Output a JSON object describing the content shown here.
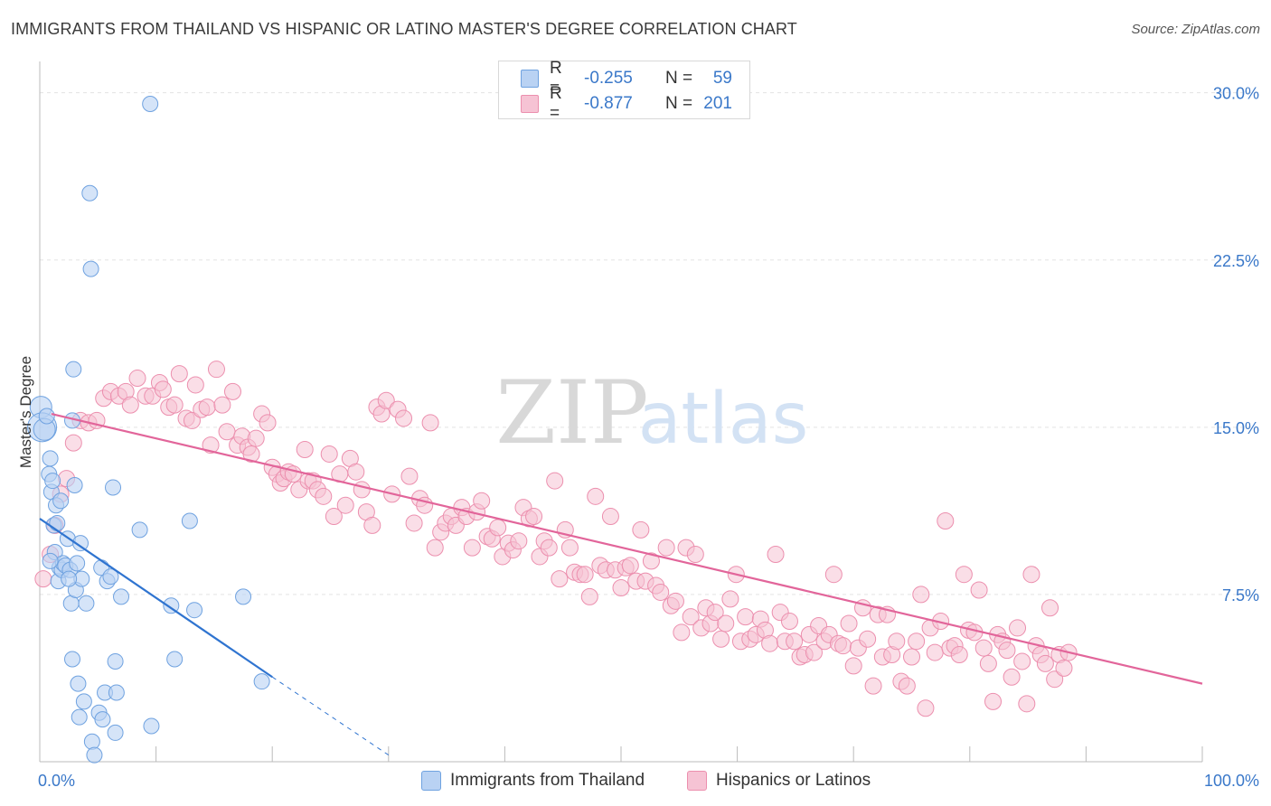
{
  "title": "IMMIGRANTS FROM THAILAND VS HISPANIC OR LATINO MASTER'S DEGREE CORRELATION CHART",
  "source": "Source: ZipAtlas.com",
  "watermark": {
    "zip": "ZIP",
    "atlas": "atlas"
  },
  "colors": {
    "blue": "#6fa2e0",
    "blue_fill": "#b9d2f3",
    "blue_line": "#2f74d0",
    "pink": "#ec8fae",
    "pink_fill": "#f6c3d4",
    "pink_line": "#e2659a",
    "tick_text": "#3a78c9"
  },
  "legend": {
    "rows": [
      {
        "r_label": "R =",
        "r_value": "-0.255",
        "n_label": "N =",
        "n_value": "59"
      },
      {
        "r_label": "R =",
        "r_value": "-0.877",
        "n_label": "N =",
        "n_value": "201"
      }
    ]
  },
  "bottom_legend": {
    "blue": "Immigrants from Thailand",
    "pink": "Hispanics or Latinos"
  },
  "chart_data": {
    "type": "scatter",
    "title": "IMMIGRANTS FROM THAILAND VS HISPANIC OR LATINO MASTER'S DEGREE CORRELATION CHART",
    "xlabel": "",
    "ylabel": "Master's Degree",
    "xlim": [
      0,
      100
    ],
    "ylim": [
      0,
      31
    ],
    "x_tick_labels": [
      "0.0%",
      "100.0%"
    ],
    "y_ticks": [
      7.5,
      15.0,
      22.5,
      30.0
    ],
    "y_tick_labels": [
      "7.5%",
      "15.0%",
      "22.5%",
      "30.0%"
    ],
    "series": [
      {
        "name": "Immigrants from Thailand",
        "color": "blue",
        "r": -0.255,
        "n": 59,
        "trend": {
          "x0": 0,
          "y0": 10.9,
          "x1": 20,
          "y1": 3.8,
          "dash_to_x": 30,
          "dash_to_y": 0.3
        },
        "points": [
          [
            0.1,
            15.9
          ],
          [
            0.2,
            15.0
          ],
          [
            0.4,
            14.9
          ],
          [
            0.6,
            15.5
          ],
          [
            0.8,
            12.9
          ],
          [
            0.9,
            13.6
          ],
          [
            1.0,
            12.1
          ],
          [
            1.1,
            12.6
          ],
          [
            1.3,
            9.4
          ],
          [
            1.2,
            10.6
          ],
          [
            1.4,
            11.5
          ],
          [
            1.6,
            8.1
          ],
          [
            1.7,
            8.7
          ],
          [
            1.8,
            11.7
          ],
          [
            1.9,
            8.6
          ],
          [
            2.0,
            8.9
          ],
          [
            2.2,
            8.8
          ],
          [
            2.4,
            10.0
          ],
          [
            2.6,
            8.6
          ],
          [
            2.7,
            7.1
          ],
          [
            2.8,
            4.6
          ],
          [
            2.8,
            15.3
          ],
          [
            2.9,
            17.6
          ],
          [
            3.1,
            7.7
          ],
          [
            3.2,
            8.9
          ],
          [
            3.3,
            3.5
          ],
          [
            3.4,
            2.0
          ],
          [
            3.5,
            9.8
          ],
          [
            3.6,
            8.2
          ],
          [
            3.8,
            2.7
          ],
          [
            4.0,
            7.1
          ],
          [
            4.3,
            25.5
          ],
          [
            4.4,
            22.1
          ],
          [
            4.5,
            0.9
          ],
          [
            4.7,
            0.3
          ],
          [
            5.1,
            2.2
          ],
          [
            5.3,
            8.7
          ],
          [
            5.4,
            1.9
          ],
          [
            5.6,
            3.1
          ],
          [
            5.8,
            8.1
          ],
          [
            6.1,
            8.3
          ],
          [
            6.3,
            12.3
          ],
          [
            6.5,
            4.5
          ],
          [
            6.5,
            1.3
          ],
          [
            6.6,
            3.1
          ],
          [
            7.0,
            7.4
          ],
          [
            8.6,
            10.4
          ],
          [
            9.5,
            29.5
          ],
          [
            9.6,
            1.6
          ],
          [
            11.3,
            7.0
          ],
          [
            11.6,
            4.6
          ],
          [
            12.9,
            10.8
          ],
          [
            13.3,
            6.8
          ],
          [
            17.5,
            7.4
          ],
          [
            19.1,
            3.6
          ],
          [
            2.5,
            8.2
          ],
          [
            1.5,
            10.7
          ],
          [
            3.0,
            12.4
          ],
          [
            0.9,
            9.0
          ]
        ]
      },
      {
        "name": "Hispanics or Latinos",
        "color": "pink",
        "r": -0.877,
        "n": 201,
        "trend": {
          "x0": 1,
          "y0": 15.6,
          "x1": 100,
          "y1": 3.5
        },
        "points": [
          [
            0.3,
            8.2
          ],
          [
            0.9,
            9.3
          ],
          [
            1.3,
            10.6
          ],
          [
            1.8,
            12.0
          ],
          [
            2.3,
            12.7
          ],
          [
            2.9,
            14.3
          ],
          [
            3.5,
            15.3
          ],
          [
            4.2,
            15.2
          ],
          [
            4.9,
            15.3
          ],
          [
            5.5,
            16.3
          ],
          [
            6.1,
            16.6
          ],
          [
            6.8,
            16.4
          ],
          [
            7.4,
            16.6
          ],
          [
            7.8,
            16.0
          ],
          [
            8.4,
            17.2
          ],
          [
            9.1,
            16.4
          ],
          [
            9.7,
            16.4
          ],
          [
            10.3,
            17.0
          ],
          [
            10.6,
            16.7
          ],
          [
            11.1,
            15.9
          ],
          [
            11.6,
            16.0
          ],
          [
            12.0,
            17.4
          ],
          [
            12.6,
            15.4
          ],
          [
            13.1,
            15.3
          ],
          [
            13.4,
            16.9
          ],
          [
            13.9,
            15.8
          ],
          [
            14.4,
            15.9
          ],
          [
            14.7,
            14.2
          ],
          [
            15.2,
            17.6
          ],
          [
            15.7,
            16.0
          ],
          [
            16.1,
            14.8
          ],
          [
            16.6,
            16.6
          ],
          [
            17.0,
            14.2
          ],
          [
            17.4,
            14.6
          ],
          [
            17.9,
            14.1
          ],
          [
            18.2,
            13.8
          ],
          [
            18.6,
            14.5
          ],
          [
            19.1,
            15.6
          ],
          [
            19.6,
            15.2
          ],
          [
            20.0,
            13.2
          ],
          [
            20.4,
            12.9
          ],
          [
            20.7,
            12.5
          ],
          [
            21.0,
            12.7
          ],
          [
            21.4,
            13.0
          ],
          [
            21.8,
            12.9
          ],
          [
            22.3,
            12.2
          ],
          [
            22.8,
            14.0
          ],
          [
            23.1,
            12.6
          ],
          [
            23.5,
            12.6
          ],
          [
            23.9,
            12.2
          ],
          [
            24.4,
            11.9
          ],
          [
            24.9,
            13.8
          ],
          [
            25.3,
            11.0
          ],
          [
            25.8,
            12.9
          ],
          [
            26.3,
            11.5
          ],
          [
            26.7,
            13.6
          ],
          [
            27.2,
            13.0
          ],
          [
            27.7,
            12.2
          ],
          [
            28.1,
            11.2
          ],
          [
            28.6,
            10.6
          ],
          [
            29.0,
            15.9
          ],
          [
            29.4,
            15.6
          ],
          [
            29.8,
            16.2
          ],
          [
            30.3,
            12.0
          ],
          [
            30.8,
            15.8
          ],
          [
            31.3,
            15.4
          ],
          [
            31.8,
            12.8
          ],
          [
            32.2,
            10.7
          ],
          [
            32.7,
            11.8
          ],
          [
            33.1,
            11.5
          ],
          [
            33.6,
            15.2
          ],
          [
            34.0,
            9.6
          ],
          [
            34.5,
            10.3
          ],
          [
            34.9,
            10.7
          ],
          [
            35.4,
            11.0
          ],
          [
            35.8,
            10.6
          ],
          [
            36.3,
            11.4
          ],
          [
            36.7,
            11.0
          ],
          [
            37.2,
            9.6
          ],
          [
            37.6,
            11.2
          ],
          [
            38.0,
            11.7
          ],
          [
            38.5,
            10.1
          ],
          [
            38.9,
            10.0
          ],
          [
            39.4,
            10.5
          ],
          [
            39.8,
            9.2
          ],
          [
            40.3,
            9.8
          ],
          [
            40.7,
            9.5
          ],
          [
            41.2,
            9.9
          ],
          [
            41.6,
            11.4
          ],
          [
            42.1,
            10.9
          ],
          [
            42.5,
            11.0
          ],
          [
            43.0,
            9.2
          ],
          [
            43.4,
            9.9
          ],
          [
            43.8,
            9.6
          ],
          [
            44.3,
            12.6
          ],
          [
            44.7,
            8.2
          ],
          [
            45.2,
            10.4
          ],
          [
            45.6,
            9.6
          ],
          [
            46.0,
            8.5
          ],
          [
            46.5,
            8.4
          ],
          [
            46.9,
            8.4
          ],
          [
            47.3,
            7.4
          ],
          [
            47.8,
            11.9
          ],
          [
            48.2,
            8.8
          ],
          [
            48.7,
            8.6
          ],
          [
            49.1,
            11.0
          ],
          [
            49.5,
            8.6
          ],
          [
            50.0,
            7.8
          ],
          [
            50.4,
            8.7
          ],
          [
            50.8,
            8.8
          ],
          [
            51.3,
            8.1
          ],
          [
            51.7,
            10.4
          ],
          [
            52.1,
            8.1
          ],
          [
            52.6,
            9.0
          ],
          [
            53.0,
            7.9
          ],
          [
            53.4,
            7.6
          ],
          [
            53.9,
            9.6
          ],
          [
            54.3,
            7.0
          ],
          [
            54.7,
            7.2
          ],
          [
            55.2,
            5.8
          ],
          [
            55.6,
            9.6
          ],
          [
            56.0,
            6.5
          ],
          [
            56.4,
            9.3
          ],
          [
            56.9,
            6.0
          ],
          [
            57.3,
            6.9
          ],
          [
            57.7,
            6.2
          ],
          [
            58.1,
            6.7
          ],
          [
            58.6,
            5.5
          ],
          [
            59.0,
            6.2
          ],
          [
            59.4,
            7.3
          ],
          [
            59.9,
            8.4
          ],
          [
            60.3,
            5.4
          ],
          [
            60.7,
            6.5
          ],
          [
            61.1,
            5.5
          ],
          [
            61.6,
            5.7
          ],
          [
            62.0,
            6.4
          ],
          [
            62.4,
            5.9
          ],
          [
            62.8,
            5.3
          ],
          [
            63.3,
            9.3
          ],
          [
            63.7,
            6.7
          ],
          [
            64.1,
            5.4
          ],
          [
            64.5,
            6.3
          ],
          [
            64.9,
            5.4
          ],
          [
            65.4,
            4.7
          ],
          [
            65.8,
            4.8
          ],
          [
            66.2,
            5.7
          ],
          [
            66.6,
            4.9
          ],
          [
            67.0,
            6.1
          ],
          [
            67.5,
            5.4
          ],
          [
            67.9,
            5.7
          ],
          [
            68.3,
            8.4
          ],
          [
            68.7,
            5.3
          ],
          [
            69.1,
            5.2
          ],
          [
            69.6,
            6.2
          ],
          [
            70.0,
            4.3
          ],
          [
            70.4,
            5.1
          ],
          [
            70.8,
            6.9
          ],
          [
            71.2,
            5.5
          ],
          [
            71.7,
            3.4
          ],
          [
            72.1,
            6.6
          ],
          [
            72.5,
            4.7
          ],
          [
            72.9,
            6.6
          ],
          [
            73.3,
            4.8
          ],
          [
            73.7,
            5.4
          ],
          [
            74.1,
            3.6
          ],
          [
            74.6,
            3.4
          ],
          [
            75.0,
            4.7
          ],
          [
            75.4,
            5.4
          ],
          [
            75.8,
            7.5
          ],
          [
            76.2,
            2.4
          ],
          [
            76.6,
            6.0
          ],
          [
            77.0,
            4.9
          ],
          [
            77.5,
            6.3
          ],
          [
            77.9,
            10.8
          ],
          [
            78.3,
            5.1
          ],
          [
            78.7,
            5.2
          ],
          [
            79.1,
            4.8
          ],
          [
            79.5,
            8.4
          ],
          [
            79.9,
            5.9
          ],
          [
            80.4,
            5.8
          ],
          [
            80.8,
            7.7
          ],
          [
            81.2,
            5.1
          ],
          [
            81.6,
            4.4
          ],
          [
            82.0,
            2.7
          ],
          [
            82.4,
            5.7
          ],
          [
            82.8,
            5.4
          ],
          [
            83.2,
            5.0
          ],
          [
            83.6,
            3.8
          ],
          [
            84.1,
            6.0
          ],
          [
            84.5,
            4.5
          ],
          [
            84.9,
            2.6
          ],
          [
            85.3,
            8.4
          ],
          [
            85.7,
            5.2
          ],
          [
            86.1,
            4.8
          ],
          [
            86.5,
            4.4
          ],
          [
            86.9,
            6.9
          ],
          [
            87.3,
            3.7
          ],
          [
            87.7,
            4.8
          ],
          [
            88.1,
            4.2
          ],
          [
            88.5,
            4.9
          ]
        ]
      }
    ]
  }
}
